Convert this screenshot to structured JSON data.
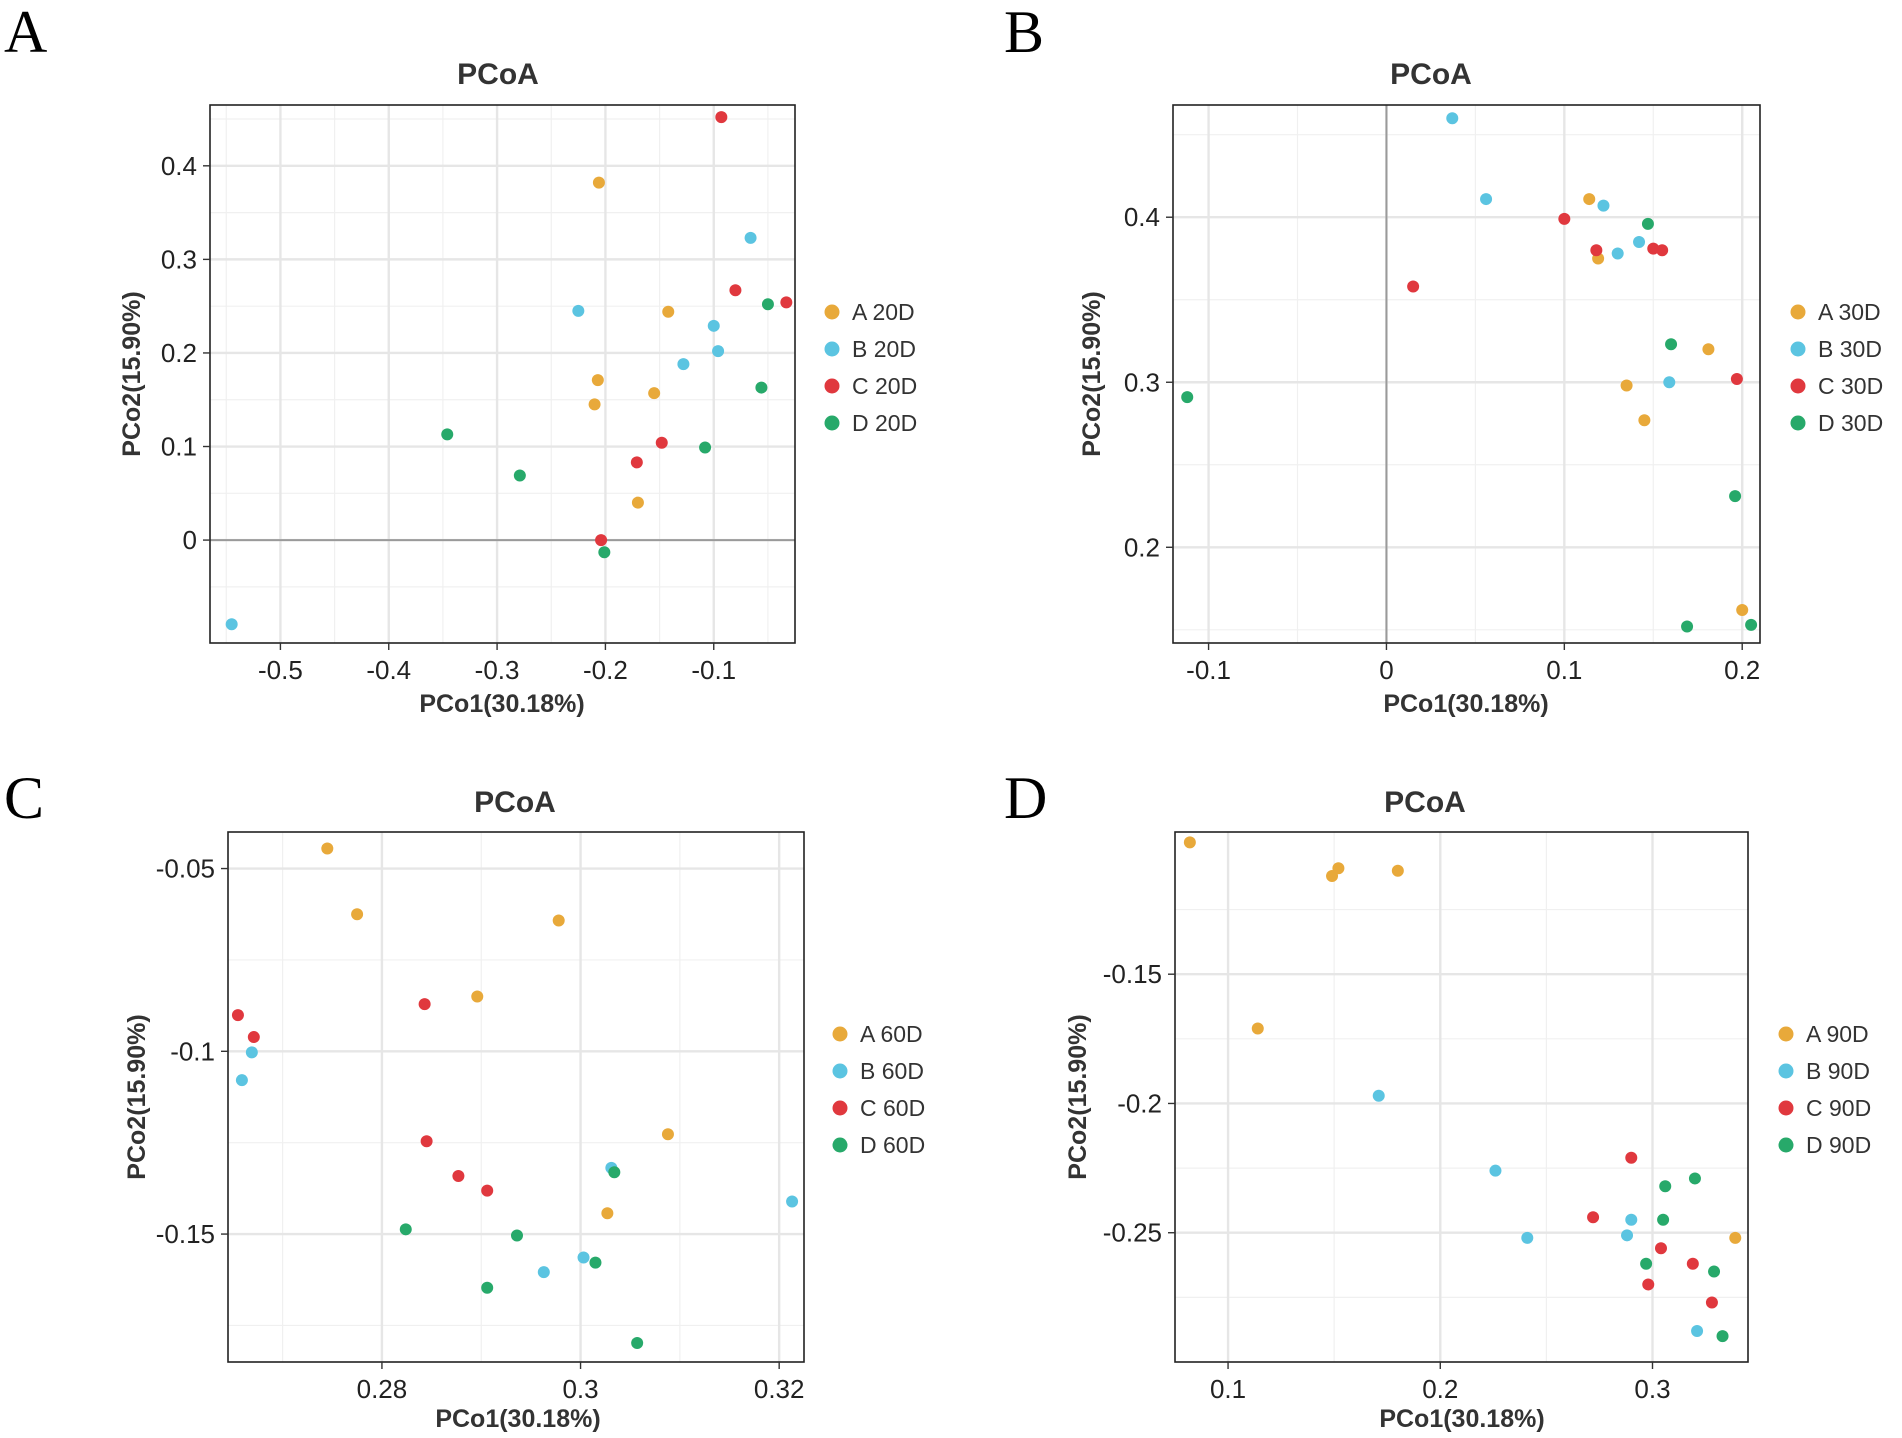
{
  "colors": {
    "A": "#E8A93A",
    "B": "#5BC4E1",
    "C": "#E0383E",
    "D": "#27A96A"
  },
  "chart_data": [
    {
      "panel": "A",
      "type": "scatter",
      "title": "PCoA",
      "xlabel": "PCo1(30.18%)",
      "ylabel": "PCo2(15.90%)",
      "xlim": [
        -0.565,
        -0.025
      ],
      "ylim": [
        -0.11,
        0.465
      ],
      "xticks": [
        -0.5,
        -0.4,
        -0.3,
        -0.2,
        -0.1
      ],
      "xtick_labels": [
        "-0.5",
        "-0.4",
        "-0.3",
        "-0.2",
        "-0.1"
      ],
      "yticks": [
        0,
        0.1,
        0.2,
        0.3,
        0.4
      ],
      "ytick_labels": [
        "0",
        "0.1",
        "0.2",
        "0.3",
        "0.4"
      ],
      "zero_lines": {
        "x": false,
        "y": true
      },
      "legend": [
        "A 20D",
        "B 20D",
        "C 20D",
        "D 20D"
      ],
      "series": [
        {
          "name": "A 20D",
          "group": "A",
          "points": [
            [
              -0.206,
              0.382
            ],
            [
              -0.142,
              0.244
            ],
            [
              -0.207,
              0.171
            ],
            [
              -0.155,
              0.157
            ],
            [
              -0.21,
              0.145
            ],
            [
              -0.17,
              0.04
            ]
          ]
        },
        {
          "name": "B 20D",
          "group": "B",
          "points": [
            [
              -0.066,
              0.323
            ],
            [
              -0.225,
              0.245
            ],
            [
              -0.1,
              0.229
            ],
            [
              -0.096,
              0.202
            ],
            [
              -0.128,
              0.188
            ],
            [
              -0.545,
              -0.09
            ]
          ]
        },
        {
          "name": "C 20D",
          "group": "C",
          "points": [
            [
              -0.093,
              0.452
            ],
            [
              -0.08,
              0.267
            ],
            [
              -0.033,
              0.254
            ],
            [
              -0.148,
              0.104
            ],
            [
              -0.171,
              0.083
            ],
            [
              -0.204,
              0.0
            ]
          ]
        },
        {
          "name": "D 20D",
          "group": "D",
          "points": [
            [
              -0.05,
              0.252
            ],
            [
              -0.056,
              0.163
            ],
            [
              -0.108,
              0.099
            ],
            [
              -0.346,
              0.113
            ],
            [
              -0.279,
              0.069
            ],
            [
              -0.201,
              -0.013
            ]
          ]
        }
      ]
    },
    {
      "panel": "B",
      "type": "scatter",
      "title": "PCoA",
      "xlabel": "PCo1(30.18%)",
      "ylabel": "PCo2(15.90%)",
      "xlim": [
        -0.12,
        0.21
      ],
      "ylim": [
        0.142,
        0.468
      ],
      "xticks": [
        -0.1,
        0,
        0.1,
        0.2
      ],
      "xtick_labels": [
        "-0.1",
        "0",
        "0.1",
        "0.2"
      ],
      "yticks": [
        0.2,
        0.3,
        0.4
      ],
      "ytick_labels": [
        "0.2",
        "0.3",
        "0.4"
      ],
      "zero_lines": {
        "x": true,
        "y": false
      },
      "legend": [
        "A 30D",
        "B 30D",
        "C 30D",
        "D 30D"
      ],
      "series": [
        {
          "name": "A 30D",
          "group": "A",
          "points": [
            [
              0.114,
              0.411
            ],
            [
              0.119,
              0.375
            ],
            [
              0.181,
              0.32
            ],
            [
              0.135,
              0.298
            ],
            [
              0.145,
              0.277
            ],
            [
              0.2,
              0.162
            ]
          ]
        },
        {
          "name": "B 30D",
          "group": "B",
          "points": [
            [
              0.037,
              0.46
            ],
            [
              0.056,
              0.411
            ],
            [
              0.122,
              0.407
            ],
            [
              0.142,
              0.385
            ],
            [
              0.13,
              0.378
            ],
            [
              0.159,
              0.3
            ]
          ]
        },
        {
          "name": "C 30D",
          "group": "C",
          "points": [
            [
              0.1,
              0.399
            ],
            [
              0.118,
              0.38
            ],
            [
              0.15,
              0.381
            ],
            [
              0.155,
              0.38
            ],
            [
              0.015,
              0.358
            ],
            [
              0.197,
              0.302
            ]
          ]
        },
        {
          "name": "D 30D",
          "group": "D",
          "points": [
            [
              0.147,
              0.396
            ],
            [
              0.16,
              0.323
            ],
            [
              0.196,
              0.231
            ],
            [
              0.169,
              0.152
            ],
            [
              0.205,
              0.153
            ],
            [
              -0.112,
              0.291
            ]
          ]
        }
      ]
    },
    {
      "panel": "C",
      "type": "scatter",
      "title": "PCoA",
      "xlabel": "PCo1(30.18%)",
      "ylabel": "PCo2(15.90%)",
      "xlim": [
        0.2645,
        0.3225
      ],
      "ylim": [
        -0.185,
        -0.04
      ],
      "xticks": [
        0.28,
        0.3,
        0.32
      ],
      "xtick_labels": [
        "0.28",
        "0.3",
        "0.32"
      ],
      "yticks": [
        -0.15,
        -0.1,
        -0.05
      ],
      "ytick_labels": [
        "-0.15",
        "-0.1",
        "-0.05"
      ],
      "zero_lines": {
        "x": false,
        "y": false
      },
      "legend": [
        "A 60D",
        "B 60D",
        "C 60D",
        "D 60D"
      ],
      "series": [
        {
          "name": "A 60D",
          "group": "A",
          "points": [
            [
              0.2745,
              -0.0445
            ],
            [
              0.2775,
              -0.0625
            ],
            [
              0.2978,
              -0.0642
            ],
            [
              0.2896,
              -0.085
            ],
            [
              0.3088,
              -0.1227
            ],
            [
              0.3027,
              -0.1443
            ]
          ]
        },
        {
          "name": "B 60D",
          "group": "B",
          "points": [
            [
              0.2669,
              -0.1003
            ],
            [
              0.2659,
              -0.1079
            ],
            [
              0.3031,
              -0.1319
            ],
            [
              0.3213,
              -0.1411
            ],
            [
              0.3003,
              -0.1564
            ],
            [
              0.2963,
              -0.1604
            ]
          ]
        },
        {
          "name": "C 60D",
          "group": "C",
          "points": [
            [
              0.2655,
              -0.0901
            ],
            [
              0.2671,
              -0.0961
            ],
            [
              0.2843,
              -0.0871
            ],
            [
              0.2845,
              -0.1246
            ],
            [
              0.2877,
              -0.1341
            ],
            [
              0.2906,
              -0.1381
            ]
          ]
        },
        {
          "name": "D 60D",
          "group": "D",
          "points": [
            [
              0.3034,
              -0.1331
            ],
            [
              0.2824,
              -0.1487
            ],
            [
              0.2936,
              -0.1504
            ],
            [
              0.3015,
              -0.1578
            ],
            [
              0.2906,
              -0.1647
            ],
            [
              0.3057,
              -0.1798
            ]
          ]
        }
      ]
    },
    {
      "panel": "D",
      "type": "scatter",
      "title": "PCoA",
      "xlabel": "PCo1(30.18%)",
      "ylabel": "PCo2(15.90%)",
      "xlim": [
        0.075,
        0.345
      ],
      "ylim": [
        -0.3,
        -0.095
      ],
      "xticks": [
        0.1,
        0.2,
        0.3
      ],
      "xtick_labels": [
        "0.1",
        "0.2",
        "0.3"
      ],
      "yticks": [
        -0.25,
        -0.2,
        -0.15
      ],
      "ytick_labels": [
        "-0.25",
        "-0.2",
        "-0.15"
      ],
      "zero_lines": {
        "x": false,
        "y": false
      },
      "legend": [
        "A 90D",
        "B 90D",
        "C 90D",
        "D 90D"
      ],
      "series": [
        {
          "name": "A 90D",
          "group": "A",
          "points": [
            [
              0.082,
              -0.099
            ],
            [
              0.152,
              -0.109
            ],
            [
              0.149,
              -0.112
            ],
            [
              0.18,
              -0.11
            ],
            [
              0.114,
              -0.171
            ],
            [
              0.339,
              -0.252
            ]
          ]
        },
        {
          "name": "B 90D",
          "group": "B",
          "points": [
            [
              0.171,
              -0.197
            ],
            [
              0.226,
              -0.226
            ],
            [
              0.29,
              -0.245
            ],
            [
              0.241,
              -0.252
            ],
            [
              0.288,
              -0.251
            ],
            [
              0.321,
              -0.288
            ]
          ]
        },
        {
          "name": "C 90D",
          "group": "C",
          "points": [
            [
              0.29,
              -0.221
            ],
            [
              0.272,
              -0.244
            ],
            [
              0.304,
              -0.256
            ],
            [
              0.319,
              -0.262
            ],
            [
              0.298,
              -0.27
            ],
            [
              0.328,
              -0.277
            ]
          ]
        },
        {
          "name": "D 90D",
          "group": "D",
          "points": [
            [
              0.306,
              -0.232
            ],
            [
              0.32,
              -0.229
            ],
            [
              0.305,
              -0.245
            ],
            [
              0.297,
              -0.262
            ],
            [
              0.329,
              -0.265
            ],
            [
              0.333,
              -0.29
            ]
          ]
        }
      ]
    }
  ]
}
